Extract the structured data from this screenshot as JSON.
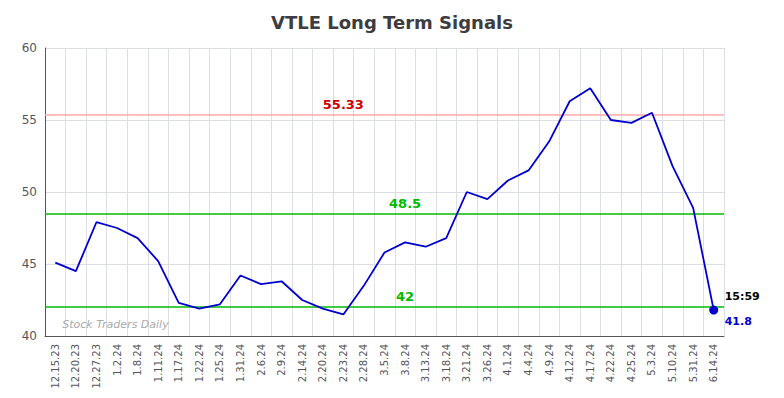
{
  "chart_data": {
    "type": "line",
    "title": "VTLE Long Term Signals",
    "categories": [
      "12.15.23",
      "12.20.23",
      "12.27.23",
      "1.2.24",
      "1.8.24",
      "1.11.24",
      "1.17.24",
      "1.22.24",
      "1.25.24",
      "1.31.24",
      "2.6.24",
      "2.9.24",
      "2.14.24",
      "2.20.24",
      "2.23.24",
      "2.28.24",
      "3.5.24",
      "3.8.24",
      "3.13.24",
      "3.18.24",
      "3.21.24",
      "3.26.24",
      "4.1.24",
      "4.4.24",
      "4.9.24",
      "4.12.24",
      "4.17.24",
      "4.22.24",
      "4.25.24",
      "5.3.24",
      "5.10.24",
      "5.31.24",
      "6.14.24"
    ],
    "values": [
      45.1,
      44.5,
      47.9,
      47.5,
      46.8,
      45.2,
      42.3,
      41.9,
      42.2,
      44.2,
      43.6,
      43.8,
      42.5,
      41.9,
      41.5,
      43.5,
      45.8,
      46.5,
      46.2,
      46.8,
      50.0,
      49.5,
      50.8,
      51.5,
      53.5,
      56.3,
      57.2,
      55.0,
      54.8,
      55.5,
      51.8,
      48.9,
      41.8
    ],
    "color": "#0000cc",
    "ylim": [
      40,
      60
    ],
    "yticks": [
      40,
      45,
      50,
      55,
      60
    ],
    "grid": true,
    "hlines": [
      {
        "value": 55.33,
        "color": "#ffaaaa",
        "label": "55.33",
        "label_color": "#cc0000",
        "label_x": "2.23.24"
      },
      {
        "value": 48.5,
        "color": "#00bb00",
        "label": "48.5",
        "label_color": "#00bb00",
        "label_x": "3.8.24"
      },
      {
        "value": 42,
        "color": "#00bb00",
        "label": "42",
        "label_color": "#00bb00",
        "label_x": "3.8.24"
      }
    ],
    "last_point": {
      "time_label": "15:59",
      "price_label": "41.8"
    },
    "watermark": {
      "text": "Stock Traders Daily",
      "color": "#aaaaaa"
    }
  }
}
